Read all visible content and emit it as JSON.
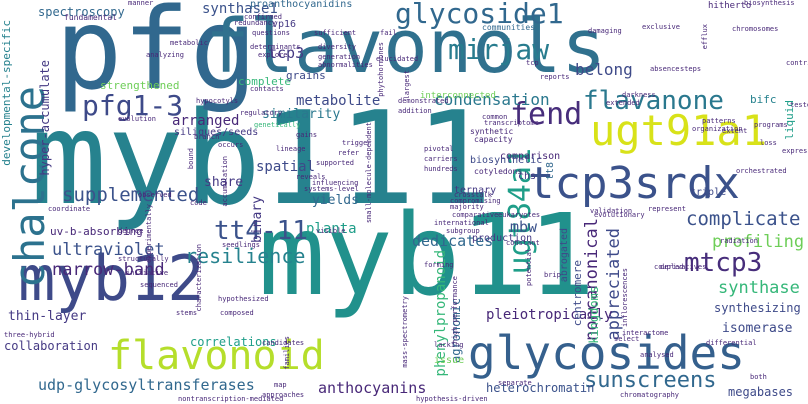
{
  "words": {
    "myb111": "myb111",
    "myb11": "myb11",
    "pfg": "pfg",
    "flavonols": "flavonols",
    "myb12": "myb12",
    "glycosides": "glycosides",
    "flavonoid": "flavonoid",
    "chalcone": "chalcone",
    "tcp3srdx": "tcp3srdx",
    "ugt91a1": "ugt91a1",
    "glycoside1": "glycoside1",
    "mirjaw": "mirjaw",
    "pfg1_3": "pfg1-3",
    "flavanone": "flavanone",
    "fend": "fend",
    "ugt84a1": "ugt84a1",
    "tt4_11": "tt4-11",
    "mtcp3": "mtcp3",
    "sunscreens": "sunscreens",
    "supplemented": "supplemented",
    "complicate": "complicate",
    "resilience": "resilience",
    "ultraviolet": "ultraviolet",
    "narrow_band": "narrow-band",
    "udp_glycosyltransferases": "udp-glycosyltransferases",
    "anthocyanins": "anthocyanins",
    "profiling": "profiling",
    "synthase": "synthase",
    "noncanonical": "noncanonical",
    "appreciated": "appreciated",
    "dedicates": "dedicates",
    "metabolite": "metabolite",
    "condensation": "condensation",
    "synthase1": "synthase1",
    "tcp3": "tcp3",
    "belong": "belong",
    "spectroscopy": "spectroscopy",
    "developmental_specific": "developmental-specific",
    "hyper_accumulate": "hyper-accumulate",
    "arranged": "arranged",
    "similarity": "similarity",
    "spatial": "spatial",
    "share": "share",
    "yields": "yields",
    "binary": "binary",
    "planta": "planta",
    "mbw": "mbw",
    "thin_layer": "thin-layer",
    "collaboration": "collaboration",
    "correlations": "correlations",
    "pleiotropically": "pleiotropically",
    "phenylpropanoid": "phenylpropanoid",
    "agronomic": "agronomic",
    "centromere": "centromere",
    "kingdoms": "kingdoms",
    "isomerase": "isomerase",
    "synthesizing": "synthesizing",
    "megabases": "megabases",
    "heterochromatin": "heterochromatin",
    "uv_b_absorbing": "uv-b-absorbing",
    "siliques_seeds": "siliques/seeds",
    "strengthened": "strengthened",
    "complete": "complete",
    "grains": "grains",
    "proanthocyanidins": "proanthocyanidins",
    "interconnected": "interconnected",
    "comparison": "comparison",
    "triple": "triple",
    "ternary": "ternary",
    "chs": "chs",
    "tt8": "tt8",
    "bifc": "bifc",
    "liquid": "liquid",
    "issue": "issue",
    "hitherto": "hitherto",
    "biosynthetic": "biosynthetic",
    "production": "production",
    "abrogated": "abrogated",
    "fundamental": "fundamental",
    "vp16": "vp16",
    "confirmed": "confirmed",
    "questions": "questions",
    "explore": "explore",
    "diversity": "diversity",
    "generation": "generation",
    "contacts": "contacts",
    "genetically": "genetically",
    "damaging": "damaging",
    "exclusive": "exclusive",
    "efflux": "efflux",
    "chromosomes": "chromosomes",
    "biosynthesis": "biosynthesis",
    "communities": "communities",
    "darkness": "darkness",
    "extended": "extended",
    "synthetic": "synthetic",
    "capacity": "capacity",
    "pivotal": "pivotal",
    "carriers": "carriers",
    "hundreds": "hundreds",
    "cotyledons": "cotyledons",
    "patterns": "patterns",
    "orchestrated": "orchestrated",
    "extent": "extent",
    "reveals": "reveals",
    "refer": "refer",
    "influencing": "influencing",
    "systems_level": "systems-level",
    "lineage": "lineage",
    "branch": "branch",
    "code": "code",
    "degree": "degree",
    "seedlings": "seedlings",
    "structurally": "structurally",
    "initiative": "initiative",
    "hypothesized": "hypothesized",
    "composed": "composed",
    "candidates": "candidates",
    "families": "families",
    "approaches": "approaches",
    "hypothesis_driven": "hypothesis-driven",
    "separate": "separate",
    "select": "select",
    "differential": "differential",
    "radiation": "radiation",
    "derivatives": "derivatives",
    "represent": "represent",
    "evolutionary": "evolutionary",
    "validation": "validation",
    "crosstalk": "crosstalk",
    "compromising": "compromising",
    "international": "international",
    "subgroup": "subgroup",
    "visible": "visible",
    "constant": "constant",
    "potential": "potential",
    "three_hybrid": "three-hybrid",
    "inflorescences": "inflorescences",
    "small_molecule_dependent": "small-molecule-dependent",
    "common": "common",
    "transcriptome": "transcriptome",
    "manner": "manner",
    "phytohormones": "phytohormones",
    "abnormalities": "abnormalities",
    "largest": "largest",
    "evolution": "evolution",
    "hypocotyls": "hypocotyls",
    "determinants": "determinants",
    "sufficient": "sufficient",
    "redundancy": "redundancy",
    "elucidated": "elucidated",
    "fail": "fail",
    "tcp": "tcp",
    "reports": "reports",
    "absence": "absence",
    "steps": "steps",
    "organization": "organization",
    "programs": "programs",
    "tested": "tested",
    "loss": "loss",
    "high_performance": "high-performance",
    "supported": "supported",
    "demonstrated": "demonstrated",
    "characterization": "characterization",
    "coordinate": "coordinate",
    "experimentally": "experimentally",
    "trigger": "trigger",
    "observed": "observed",
    "analyzing": "analyzing",
    "accumulation": "accumulation",
    "comparative": "comparative",
    "sequenced": "sequenced",
    "forming": "forming",
    "lacking": "lacking",
    "mass_spectrometry": "mass-spectrometry",
    "coupled": "coupled",
    "interactome": "interactome",
    "analysed": "analysed",
    "nontranscription_mediated": "nontranscription-mediated",
    "chromatography": "chromatography",
    "map": "map",
    "both": "both",
    "majority": "majority",
    "stems": "stems",
    "eukaryotes": "eukaryotes",
    "metabolic": "metabolic",
    "bound": "bound",
    "occurs": "occurs",
    "gains": "gains",
    "regulatory": "regulatory",
    "brip": "brip",
    "addition": "addition",
    "contributes": "contributes",
    "expression": "expression"
  },
  "colors": {
    "background": "#ffffff",
    "palette": [
      "#440154",
      "#482878",
      "#3e4a89",
      "#31688e",
      "#26828e",
      "#1f9e89",
      "#35b779",
      "#6ece58",
      "#b5de2b",
      "#fde725"
    ]
  }
}
